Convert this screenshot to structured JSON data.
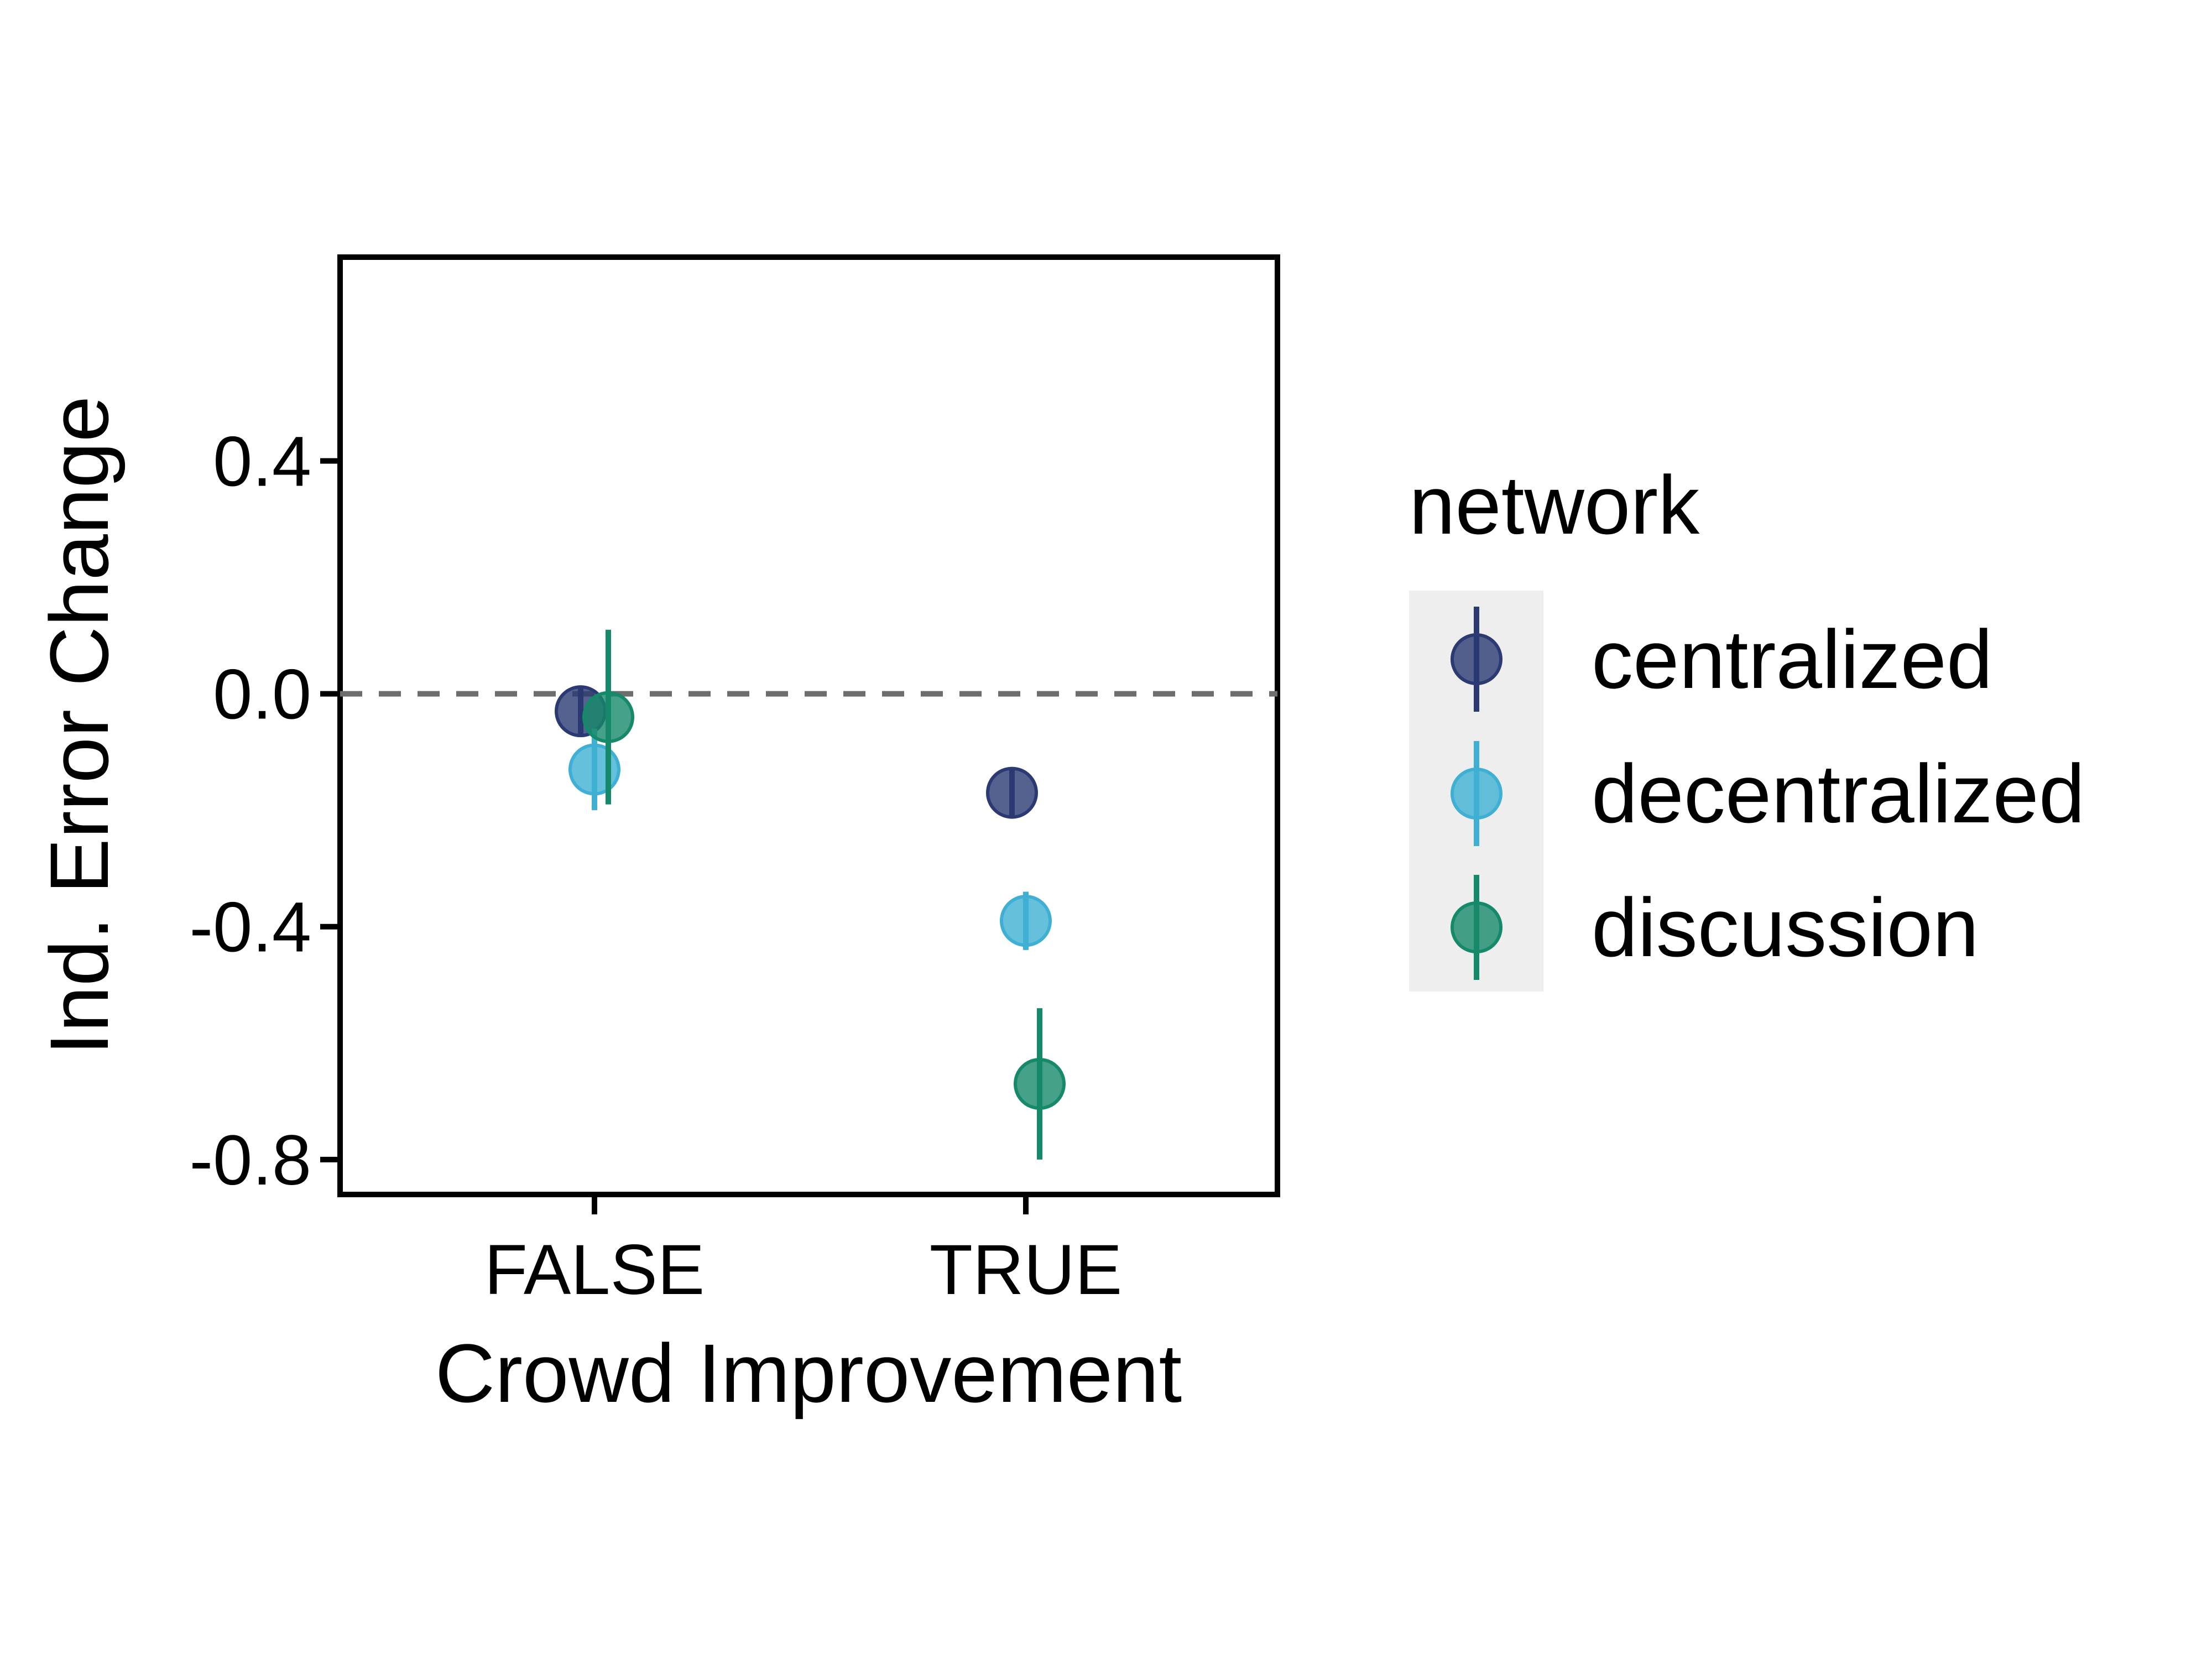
{
  "chart_data": {
    "type": "scatter",
    "xlabel": "Crowd Improvement",
    "ylabel": "Ind. Error Change",
    "categories": [
      "FALSE",
      "TRUE"
    ],
    "ylim": [
      -0.86,
      0.75
    ],
    "yticks": [
      0.4,
      0.0,
      -0.4,
      -0.8
    ],
    "ytick_labels": [
      "0.4",
      "0.0",
      "-0.4",
      "-0.8"
    ],
    "reference_line": {
      "y": 0.0,
      "style": "dashed",
      "color": "#6d6d6d"
    },
    "grid": false,
    "legend": {
      "title": "network",
      "placement": "right"
    },
    "series": [
      {
        "name": "centralized",
        "color": "#2b3a72",
        "points": [
          {
            "x": "FALSE",
            "y": -0.03,
            "low": -0.07,
            "high": 0.01
          },
          {
            "x": "TRUE",
            "y": -0.17,
            "low": -0.21,
            "high": -0.13
          }
        ]
      },
      {
        "name": "decentralized",
        "color": "#3fb0d3",
        "points": [
          {
            "x": "FALSE",
            "y": -0.13,
            "low": -0.2,
            "high": -0.06
          },
          {
            "x": "TRUE",
            "y": -0.39,
            "low": -0.44,
            "high": -0.34
          }
        ]
      },
      {
        "name": "discussion",
        "color": "#16896a",
        "points": [
          {
            "x": "FALSE",
            "y": -0.04,
            "low": -0.19,
            "high": 0.11
          },
          {
            "x": "TRUE",
            "y": -0.67,
            "low": -0.8,
            "high": -0.54
          }
        ]
      }
    ]
  }
}
